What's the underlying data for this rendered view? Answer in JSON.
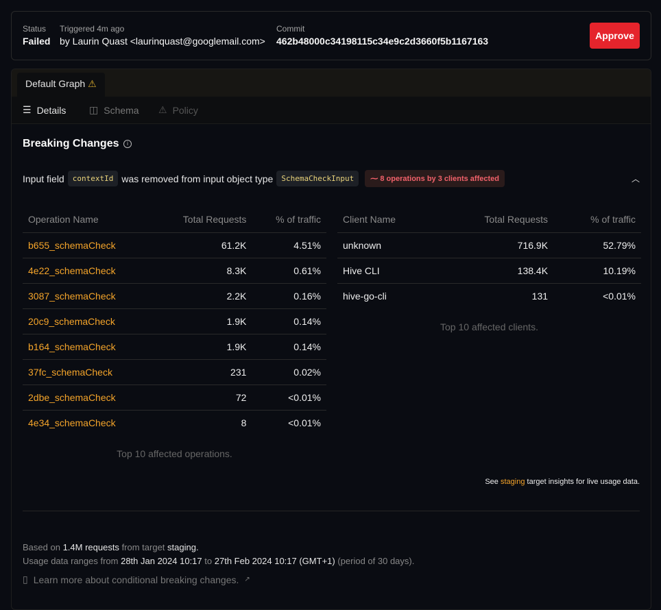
{
  "header": {
    "status_label": "Status",
    "status_value": "Failed",
    "triggered_label": "Triggered 4m ago",
    "triggered_by": "by Laurin Quast <laurinquast@googlemail.com>",
    "commit_label": "Commit",
    "commit_value": "462b48000c34198115c34e9c2d3660f5b1167163",
    "approve_label": "Approve"
  },
  "tab": {
    "label": "Default Graph"
  },
  "subnav": [
    {
      "label": "Details",
      "icon": "list-icon"
    },
    {
      "label": "Schema",
      "icon": "columns-icon"
    },
    {
      "label": "Policy",
      "icon": "warning-icon"
    }
  ],
  "section": {
    "title": "Breaking Changes"
  },
  "change": {
    "prefix": "Input field",
    "field": "contextId",
    "middle": "was removed from input object type",
    "type": "SchemaCheckInput",
    "badge": "8 operations by 3 clients affected"
  },
  "operations": {
    "headers": [
      "Operation Name",
      "Total Requests",
      "% of traffic"
    ],
    "rows": [
      [
        "b655_schemaCheck",
        "61.2K",
        "4.51%"
      ],
      [
        "4e22_schemaCheck",
        "8.3K",
        "0.61%"
      ],
      [
        "3087_schemaCheck",
        "2.2K",
        "0.16%"
      ],
      [
        "20c9_schemaCheck",
        "1.9K",
        "0.14%"
      ],
      [
        "b164_schemaCheck",
        "1.9K",
        "0.14%"
      ],
      [
        "37fc_schemaCheck",
        "231",
        "0.02%"
      ],
      [
        "2dbe_schemaCheck",
        "72",
        "<0.01%"
      ],
      [
        "4e34_schemaCheck",
        "8",
        "<0.01%"
      ]
    ],
    "caption": "Top 10 affected operations."
  },
  "clients": {
    "headers": [
      "Client Name",
      "Total Requests",
      "% of traffic"
    ],
    "rows": [
      [
        "unknown",
        "716.9K",
        "52.79%"
      ],
      [
        "Hive CLI",
        "138.4K",
        "10.19%"
      ],
      [
        "hive-go-cli",
        "131",
        "<0.01%"
      ]
    ],
    "caption": "Top 10 affected clients."
  },
  "insights": {
    "pre": "See",
    "link": "staging",
    "post": "target insights for live usage data."
  },
  "footer": {
    "l1a": "Based on",
    "l1b": "1.4M requests",
    "l1c": "from target",
    "l1d": "staging.",
    "l2a": "Usage data ranges from",
    "l2b": "28th Jan 2024 10:17",
    "l2c": "to",
    "l2d": "27th Feb 2024 10:17 (GMT+1)",
    "l2e": "(period of 30 days).",
    "learn": "Learn more about conditional breaking changes."
  },
  "colors": {
    "accent": "#f4a42a",
    "danger": "#e5242c",
    "badge": "#f0616a"
  }
}
